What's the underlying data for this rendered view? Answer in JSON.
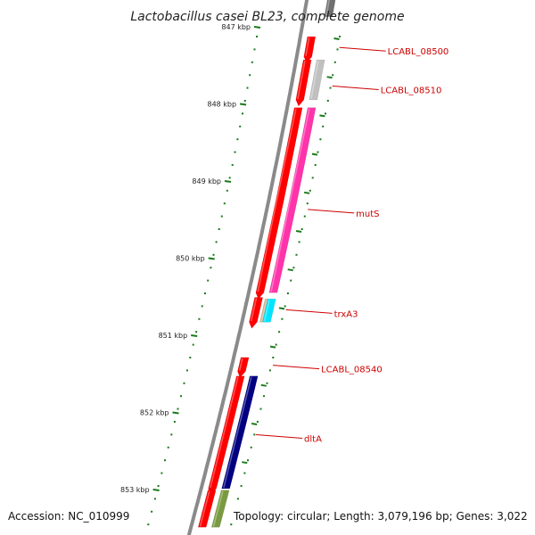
{
  "title": "Lactobacillus casei BL23, complete genome",
  "accession_text": "Accession: NC_010999",
  "topology_text": "Topology: circular; Length: 3,079,196 bp; Genes: 3,022",
  "colors": {
    "backbone": "#8a8a8a",
    "tick": "#1a7a1a",
    "label": "#cc0000",
    "cds_forward": "#ff0000",
    "cds_reverse": "#ff0000",
    "gene_gray": "#c0c0c0",
    "gene_pink": "#ff33aa",
    "gene_tan": "#d2b48c",
    "gene_cyan": "#00e5ff",
    "gene_navy": "#000080",
    "gene_olive": "#7a9a40"
  },
  "map": {
    "ticks_kbp": [
      {
        "pos": 847,
        "label": "847 kbp"
      },
      {
        "pos": 848,
        "label": "848 kbp"
      },
      {
        "pos": 849,
        "label": "849 kbp"
      },
      {
        "pos": 850,
        "label": "850 kbp"
      },
      {
        "pos": 851,
        "label": "851 kbp"
      },
      {
        "pos": 852,
        "label": "852 kbp"
      },
      {
        "pos": 853,
        "label": "853 kbp"
      }
    ],
    "features": [
      {
        "id": "f-top-gray",
        "start": 846.62,
        "end": 846.88,
        "lane": 3,
        "color": "#707070",
        "arrow": false
      },
      {
        "id": "cds-a",
        "start": 847.14,
        "end": 847.4,
        "lane": 1,
        "color": "#ff0000",
        "arrow": true
      },
      {
        "id": "cds-b",
        "start": 847.44,
        "end": 847.96,
        "lane": 1,
        "color": "#ff0000",
        "arrow": true
      },
      {
        "id": "gene-08510",
        "start": 847.44,
        "end": 847.96,
        "lane": 3,
        "color": "#c0c0c0",
        "arrow": false
      },
      {
        "id": "cds-mutS",
        "start": 848.06,
        "end": 850.46,
        "lane": 1,
        "color": "#ff0000",
        "arrow": true
      },
      {
        "id": "gene-mutS",
        "start": 848.06,
        "end": 850.46,
        "lane": 3,
        "color": "#ff33aa",
        "arrow": false
      },
      {
        "id": "cds-trxA3",
        "start": 850.52,
        "end": 850.84,
        "lane": 1,
        "color": "#ff0000",
        "arrow": true
      },
      {
        "id": "gene-trxA3-a",
        "start": 850.54,
        "end": 850.84,
        "lane": 2,
        "color": "#d2b48c",
        "arrow": false
      },
      {
        "id": "gene-trxA3-b",
        "start": 850.54,
        "end": 850.84,
        "lane": 3,
        "color": "#00e5ff",
        "arrow": false
      },
      {
        "id": "cds-08540",
        "start": 851.3,
        "end": 851.48,
        "lane": 1,
        "color": "#ff0000",
        "arrow": true
      },
      {
        "id": "cds-dltA",
        "start": 851.54,
        "end": 853.0,
        "lane": 1,
        "color": "#ff0000",
        "arrow": true
      },
      {
        "id": "gene-dltA",
        "start": 851.54,
        "end": 853.0,
        "lane": 3,
        "color": "#000080",
        "arrow": false
      },
      {
        "id": "cds-bottom",
        "start": 853.02,
        "end": 853.5,
        "lane": 1,
        "color": "#ff0000",
        "arrow": false
      },
      {
        "id": "gene-bottom",
        "start": 853.02,
        "end": 853.5,
        "lane": 3,
        "color": "#7a9a40",
        "arrow": false
      }
    ],
    "gene_labels": [
      {
        "text": "LCABL_08500",
        "pos": 847.28
      },
      {
        "text": "LCABL_08510",
        "pos": 847.78
      },
      {
        "text": "mutS",
        "pos": 849.38
      },
      {
        "text": "trxA3",
        "pos": 850.68
      },
      {
        "text": "LCABL_08540",
        "pos": 851.4
      },
      {
        "text": "dltA",
        "pos": 852.3
      }
    ]
  }
}
